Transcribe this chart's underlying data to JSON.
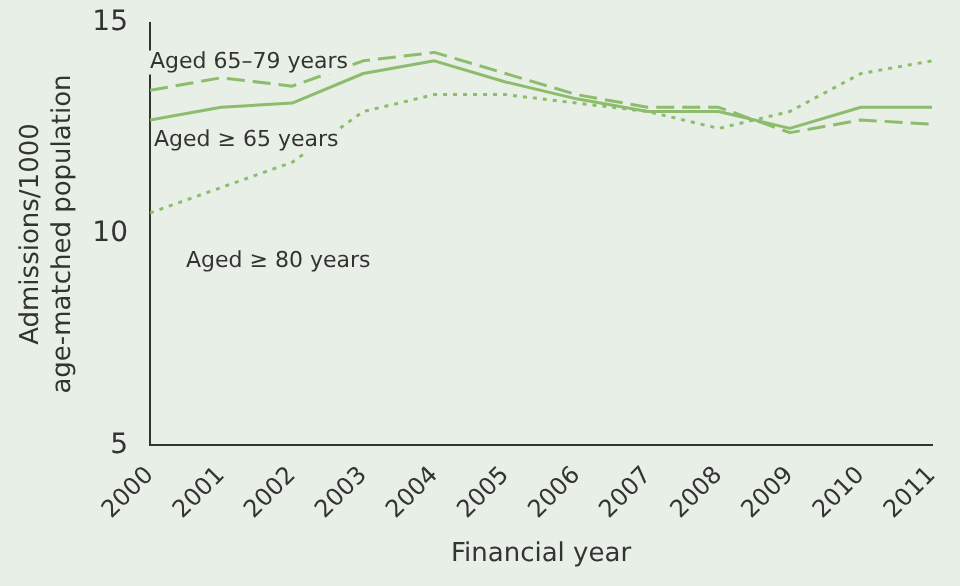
{
  "chart_data": {
    "type": "line",
    "xlabel": "Financial year",
    "ylabel": "Admissions/1000\nage-matched population",
    "x": [
      2000,
      2001,
      2002,
      2003,
      2004,
      2005,
      2006,
      2007,
      2008,
      2009,
      2010,
      2011
    ],
    "xlim": [
      2000,
      2011
    ],
    "xticks": [
      2000,
      2001,
      2002,
      2003,
      2004,
      2005,
      2006,
      2007,
      2008,
      2009,
      2010,
      2011
    ],
    "ylim": [
      5,
      15
    ],
    "yticks": [
      5,
      10,
      15
    ],
    "grid": false,
    "legend": false,
    "marker": "none",
    "series": [
      {
        "name": "Aged 65–79 years",
        "color": "#8cbc6c",
        "line_style": "dashed",
        "values": [
          13.4,
          13.7,
          13.5,
          14.1,
          14.3,
          13.8,
          13.3,
          13.0,
          13.0,
          12.4,
          12.7,
          12.6
        ]
      },
      {
        "name": "Aged ≥ 65 years",
        "color": "#8cbc6c",
        "line_style": "solid",
        "values": [
          12.7,
          13.0,
          13.1,
          13.8,
          14.1,
          13.6,
          13.2,
          12.9,
          12.9,
          12.5,
          13.0,
          13.0
        ]
      },
      {
        "name": "Aged ≥ 80 years",
        "color": "#8cbc6c",
        "line_style": "dotted",
        "values": [
          10.5,
          11.1,
          11.7,
          12.9,
          13.3,
          13.3,
          13.1,
          12.9,
          12.5,
          12.9,
          13.8,
          14.1
        ]
      }
    ]
  }
}
